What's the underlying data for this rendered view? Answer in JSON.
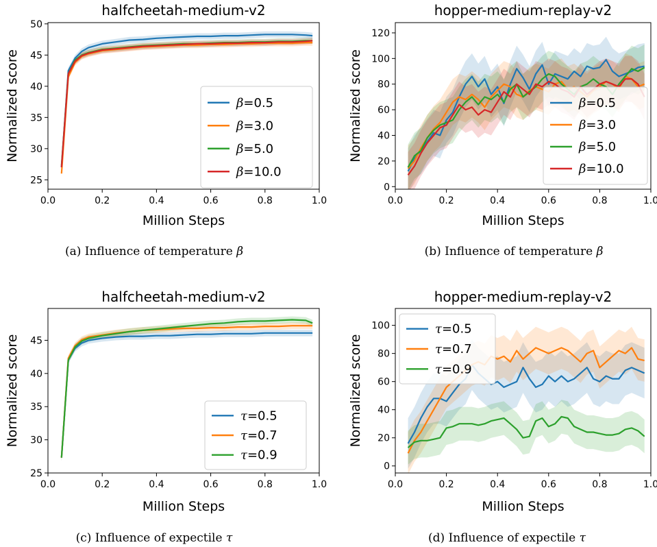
{
  "series_colors": [
    "#1f77b4",
    "#ff7f0e",
    "#2ca02c",
    "#d62728"
  ],
  "chart_data": [
    {
      "type": "line",
      "title": "halfcheetah-medium-v2",
      "xlabel": "Million Steps",
      "ylabel": "Normalized score",
      "xlim": [
        0.0,
        1.0
      ],
      "ylim": [
        23.5,
        50.2
      ],
      "xticks": [
        "0.0",
        "0.2",
        "0.4",
        "0.6",
        "0.8",
        "1.0"
      ],
      "yticks": [
        "25",
        "30",
        "35",
        "40",
        "45",
        "50"
      ],
      "legend_position": "center-right",
      "caption_text": "(a) Influence of temperature ",
      "caption_symbol": "β",
      "x": [
        0.05,
        0.075,
        0.1,
        0.125,
        0.15,
        0.2,
        0.25,
        0.3,
        0.35,
        0.4,
        0.45,
        0.5,
        0.55,
        0.6,
        0.65,
        0.7,
        0.75,
        0.8,
        0.85,
        0.9,
        0.95,
        0.975
      ],
      "series": [
        {
          "symbol": "β",
          "value_label": "=0.5",
          "band": 0.5,
          "values": [
            27.0,
            42.5,
            44.5,
            45.6,
            46.2,
            46.8,
            47.1,
            47.4,
            47.5,
            47.7,
            47.8,
            47.9,
            48.0,
            48.0,
            48.1,
            48.1,
            48.2,
            48.3,
            48.3,
            48.3,
            48.2,
            48.1
          ]
        },
        {
          "symbol": "β",
          "value_label": "=3.0",
          "band": 0.5,
          "values": [
            26.0,
            41.5,
            43.8,
            44.8,
            45.2,
            45.7,
            45.9,
            46.1,
            46.3,
            46.4,
            46.5,
            46.6,
            46.6,
            46.7,
            46.7,
            46.8,
            46.8,
            46.9,
            46.9,
            46.9,
            47.0,
            47.0
          ]
        },
        {
          "symbol": "β",
          "value_label": "=5.0",
          "band": 0.5,
          "values": [
            27.3,
            42.0,
            44.2,
            45.0,
            45.4,
            45.9,
            46.1,
            46.3,
            46.5,
            46.6,
            46.7,
            46.8,
            46.8,
            46.9,
            47.0,
            47.0,
            47.1,
            47.1,
            47.2,
            47.2,
            47.3,
            47.3
          ]
        },
        {
          "symbol": "β",
          "value_label": "=10.0",
          "band": 0.5,
          "values": [
            27.0,
            42.0,
            44.0,
            44.9,
            45.3,
            45.8,
            46.0,
            46.2,
            46.4,
            46.5,
            46.6,
            46.7,
            46.8,
            46.8,
            46.9,
            46.9,
            47.0,
            47.0,
            47.1,
            47.1,
            47.2,
            47.3
          ]
        }
      ]
    },
    {
      "type": "line",
      "title": "hopper-medium-replay-v2",
      "xlabel": "Million Steps",
      "ylabel": "Normalized score",
      "xlim": [
        0.0,
        1.0
      ],
      "ylim": [
        -2,
        128
      ],
      "xticks": [
        "0.0",
        "0.2",
        "0.4",
        "0.6",
        "0.8",
        "1.0"
      ],
      "yticks": [
        "0",
        "20",
        "40",
        "60",
        "80",
        "100",
        "120"
      ],
      "legend_position": "right",
      "caption_text": "(b) Influence of temperature ",
      "caption_symbol": "β",
      "x": [
        0.05,
        0.075,
        0.1,
        0.125,
        0.15,
        0.175,
        0.2,
        0.225,
        0.25,
        0.275,
        0.3,
        0.325,
        0.35,
        0.375,
        0.4,
        0.425,
        0.45,
        0.475,
        0.5,
        0.525,
        0.55,
        0.575,
        0.6,
        0.625,
        0.65,
        0.675,
        0.7,
        0.725,
        0.75,
        0.775,
        0.8,
        0.825,
        0.85,
        0.875,
        0.9,
        0.925,
        0.95,
        0.975
      ],
      "series": [
        {
          "symbol": "β",
          "value_label": "=0.5",
          "band": 18,
          "values": [
            12,
            22,
            28,
            35,
            42,
            40,
            52,
            58,
            70,
            80,
            86,
            78,
            84,
            72,
            78,
            65,
            80,
            92,
            85,
            76,
            88,
            95,
            80,
            88,
            86,
            84,
            90,
            86,
            94,
            92,
            93,
            99,
            90,
            86,
            88,
            90,
            93,
            94
          ]
        },
        {
          "symbol": "β",
          "value_label": "=3.0",
          "band": 18,
          "values": [
            14,
            20,
            30,
            38,
            45,
            50,
            58,
            66,
            70,
            68,
            72,
            68,
            62,
            70,
            75,
            80,
            78,
            72,
            70,
            75,
            78,
            76,
            74,
            80,
            82,
            76,
            78,
            74,
            70,
            75,
            78,
            82,
            80,
            76,
            86,
            84,
            78,
            80
          ]
        },
        {
          "symbol": "β",
          "value_label": "=5.0",
          "band": 18,
          "values": [
            15,
            24,
            28,
            38,
            44,
            48,
            50,
            52,
            60,
            66,
            70,
            64,
            70,
            68,
            72,
            66,
            76,
            80,
            70,
            74,
            78,
            84,
            88,
            86,
            80,
            76,
            72,
            78,
            80,
            84,
            80,
            78,
            72,
            80,
            86,
            92,
            90,
            93
          ]
        },
        {
          "symbol": "β",
          "value_label": "=10.0",
          "band": 18,
          "values": [
            9,
            16,
            26,
            34,
            40,
            46,
            48,
            56,
            64,
            60,
            62,
            56,
            60,
            58,
            66,
            74,
            70,
            80,
            76,
            72,
            80,
            78,
            82,
            80,
            76,
            74,
            70,
            78,
            72,
            76,
            80,
            82,
            80,
            78,
            84,
            84,
            80,
            70
          ]
        }
      ]
    },
    {
      "type": "line",
      "title": "halfcheetah-medium-v2",
      "xlabel": "Million Steps",
      "ylabel": "Normalized score",
      "xlim": [
        0.0,
        1.0
      ],
      "ylim": [
        25.0,
        49.8
      ],
      "xticks": [
        "0.0",
        "0.2",
        "0.4",
        "0.6",
        "0.8",
        "1.0"
      ],
      "yticks": [
        "25",
        "30",
        "35",
        "40",
        "45"
      ],
      "legend_position": "lower-right",
      "caption_text": "(c) Influence of expectile ",
      "caption_symbol": "τ",
      "x": [
        0.05,
        0.075,
        0.1,
        0.125,
        0.15,
        0.2,
        0.25,
        0.3,
        0.35,
        0.4,
        0.45,
        0.5,
        0.55,
        0.6,
        0.65,
        0.7,
        0.75,
        0.8,
        0.85,
        0.9,
        0.95,
        0.975
      ],
      "series": [
        {
          "symbol": "τ",
          "value_label": "=0.5",
          "band": 0.5,
          "values": [
            27.3,
            42.0,
            43.8,
            44.6,
            45.0,
            45.3,
            45.5,
            45.6,
            45.6,
            45.7,
            45.7,
            45.8,
            45.9,
            45.9,
            46.0,
            46.0,
            46.0,
            46.1,
            46.1,
            46.1,
            46.1,
            46.1
          ]
        },
        {
          "symbol": "τ",
          "value_label": "=0.7",
          "band": 0.5,
          "values": [
            27.3,
            42.3,
            44.2,
            45.1,
            45.5,
            45.8,
            46.1,
            46.3,
            46.5,
            46.6,
            46.7,
            46.8,
            46.8,
            46.9,
            46.9,
            47.0,
            47.0,
            47.1,
            47.1,
            47.2,
            47.2,
            47.2
          ]
        },
        {
          "symbol": "τ",
          "value_label": "=0.9",
          "band": 0.5,
          "values": [
            27.3,
            42.0,
            44.0,
            44.9,
            45.3,
            45.7,
            46.0,
            46.3,
            46.5,
            46.7,
            46.9,
            47.1,
            47.3,
            47.5,
            47.6,
            47.8,
            47.9,
            47.9,
            48.0,
            48.1,
            48.0,
            47.6
          ]
        }
      ]
    },
    {
      "type": "line",
      "title": "hopper-medium-replay-v2",
      "xlabel": "Million Steps",
      "ylabel": "Normalized score",
      "xlim": [
        0.0,
        1.0
      ],
      "ylim": [
        -5,
        112
      ],
      "xticks": [
        "0.0",
        "0.2",
        "0.4",
        "0.6",
        "0.8",
        "1.0"
      ],
      "yticks": [
        "0",
        "20",
        "40",
        "60",
        "80",
        "100"
      ],
      "legend_position": "upper-left",
      "caption_text": "(d) Influence of expectile ",
      "caption_symbol": "τ",
      "x": [
        0.05,
        0.075,
        0.1,
        0.125,
        0.15,
        0.175,
        0.2,
        0.225,
        0.25,
        0.275,
        0.3,
        0.325,
        0.35,
        0.375,
        0.4,
        0.425,
        0.45,
        0.475,
        0.5,
        0.525,
        0.55,
        0.575,
        0.6,
        0.625,
        0.65,
        0.675,
        0.7,
        0.725,
        0.75,
        0.775,
        0.8,
        0.825,
        0.85,
        0.875,
        0.9,
        0.925,
        0.95,
        0.975
      ],
      "series": [
        {
          "symbol": "τ",
          "value_label": "=0.5",
          "band": 18,
          "values": [
            16,
            24,
            34,
            42,
            48,
            48,
            46,
            52,
            58,
            62,
            72,
            66,
            62,
            58,
            60,
            56,
            58,
            60,
            70,
            62,
            56,
            58,
            64,
            60,
            64,
            60,
            62,
            66,
            70,
            62,
            60,
            64,
            62,
            62,
            68,
            70,
            68,
            66
          ]
        },
        {
          "symbol": "τ",
          "value_label": "=0.7",
          "band": 15,
          "values": [
            9,
            18,
            24,
            32,
            40,
            48,
            56,
            60,
            64,
            68,
            72,
            74,
            72,
            78,
            76,
            78,
            74,
            82,
            76,
            80,
            84,
            82,
            80,
            82,
            84,
            82,
            78,
            74,
            80,
            82,
            70,
            74,
            78,
            82,
            80,
            84,
            76,
            75
          ]
        },
        {
          "symbol": "τ",
          "value_label": "=0.9",
          "band": 12,
          "values": [
            13,
            17,
            18,
            18,
            19,
            20,
            27,
            28,
            30,
            30,
            30,
            29,
            30,
            32,
            33,
            34,
            30,
            26,
            20,
            21,
            32,
            34,
            28,
            30,
            35,
            34,
            28,
            26,
            24,
            24,
            23,
            22,
            22,
            23,
            26,
            27,
            25,
            21
          ]
        }
      ]
    }
  ]
}
